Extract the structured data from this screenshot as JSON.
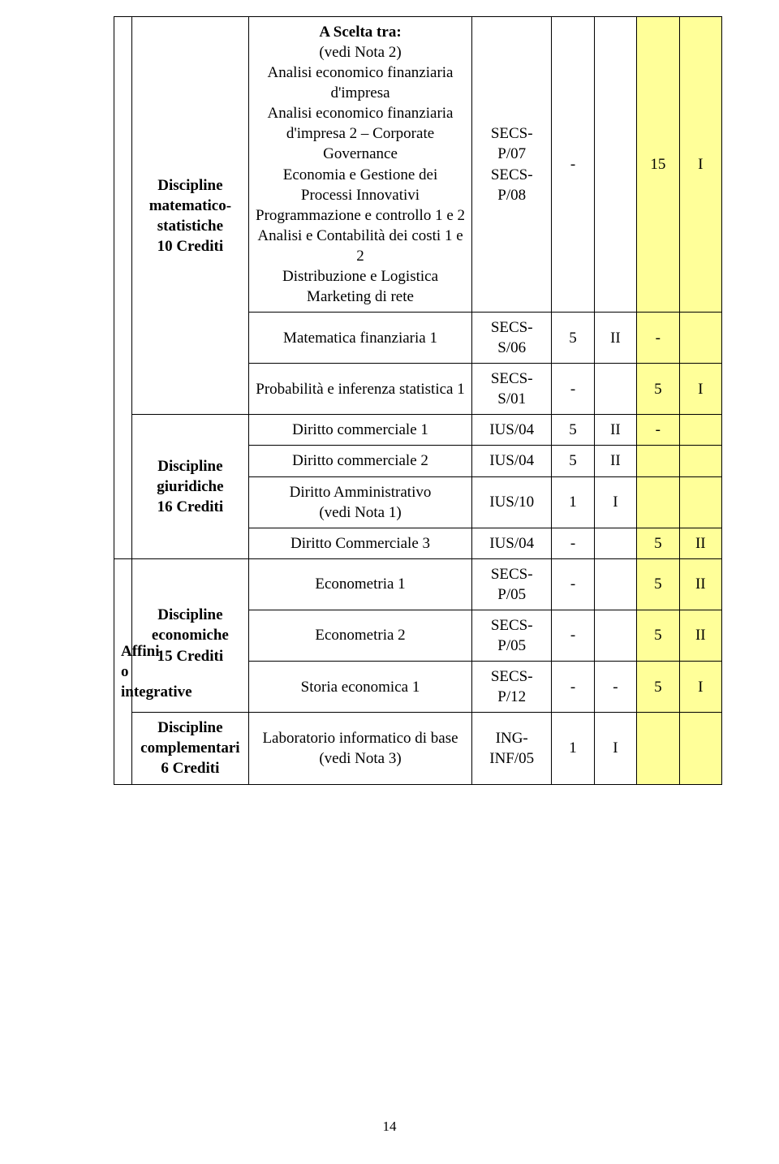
{
  "page_number": "14",
  "colors": {
    "highlight": "#ffff99",
    "border": "#000000",
    "text": "#000000",
    "background": "#ffffff"
  },
  "groups": {
    "math": "Discipline\nmatematico-\nstatistiche\n10 Crediti",
    "jur": "Discipline\ngiuridiche\n16 Crediti",
    "aff": "Affini o\nintegrative",
    "econ": "Discipline\neconomiche\n15 Crediti",
    "comp": "Discipline\ncomplementari\n6 Crediti"
  },
  "rows": {
    "scelta": {
      "course_head": "A Scelta tra:",
      "course_sub": "(vedi Nota 2)",
      "course_lines": "Analisi economico finanziaria d'impresa\nAnalisi economico finanziaria d'impresa 2 – Corporate Governance\nEconomia e Gestione dei Processi Innovativi\nProgrammazione e controllo 1 e 2\nAnalisi e Contabilità dei costi 1 e 2\nDistribuzione e Logistica\nMarketing di rete",
      "code": "SECS-\nP/07\nSECS-\nP/08",
      "a": "-",
      "b": "",
      "c": "15",
      "d": "I"
    },
    "matfin": {
      "course": "Matematica finanziaria 1",
      "code": "SECS-\nS/06",
      "a": "5",
      "b": "II",
      "c": "-",
      "d": ""
    },
    "prob": {
      "course": "Probabilità e inferenza statistica 1",
      "code": "SECS-\nS/01",
      "a": "-",
      "b": "",
      "c": "5",
      "d": "I"
    },
    "dc1": {
      "course": "Diritto commerciale 1",
      "code": "IUS/04",
      "a": "5",
      "b": "II",
      "c": "-",
      "d": ""
    },
    "dc2": {
      "course": "Diritto commerciale 2",
      "code": "IUS/04",
      "a": "5",
      "b": "II",
      "c": "",
      "d": ""
    },
    "damm": {
      "course": "Diritto Amministrativo\n(vedi Nota 1)",
      "code": "IUS/10",
      "a": "1",
      "b": "I",
      "c": "",
      "d": ""
    },
    "dc3": {
      "course": "Diritto Commerciale 3",
      "code": "IUS/04",
      "a": "-",
      "b": "",
      "c": "5",
      "d": "II"
    },
    "ec1": {
      "course": "Econometria 1",
      "code": "SECS-\nP/05",
      "a": "-",
      "b": "",
      "c": "5",
      "d": "II"
    },
    "ec2": {
      "course": "Econometria 2",
      "code": "SECS-\nP/05",
      "a": "-",
      "b": "",
      "c": "5",
      "d": "II"
    },
    "storia": {
      "course": "Storia economica 1",
      "code": "SECS-\nP/12",
      "a": "-",
      "b": "-",
      "c": "5",
      "d": "I"
    },
    "lab": {
      "course": "Laboratorio informatico di base\n(vedi Nota 3)",
      "code": "ING-\nINF/05",
      "a": "1",
      "b": "I",
      "c": "",
      "d": ""
    }
  }
}
